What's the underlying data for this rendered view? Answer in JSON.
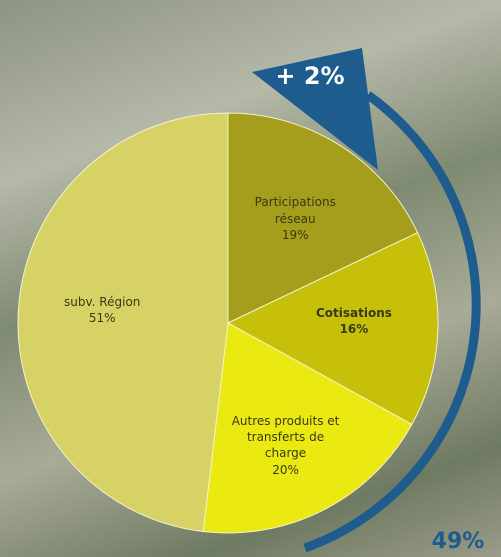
{
  "chart_data": {
    "type": "pie",
    "categories": [
      "Participations réseau",
      "Cotisations",
      "Autres produits et transferts de charge",
      "subv. Région"
    ],
    "values": [
      19,
      16,
      20,
      51
    ],
    "value_labels": [
      "19%",
      "16%",
      "20%",
      "51%"
    ],
    "colors": [
      "#a59e1c",
      "#c6c00a",
      "#eaea12",
      "#d6d266"
    ],
    "annotations": [
      "+ 2%",
      "49%"
    ],
    "annotation_color": "#1d5c8c"
  }
}
